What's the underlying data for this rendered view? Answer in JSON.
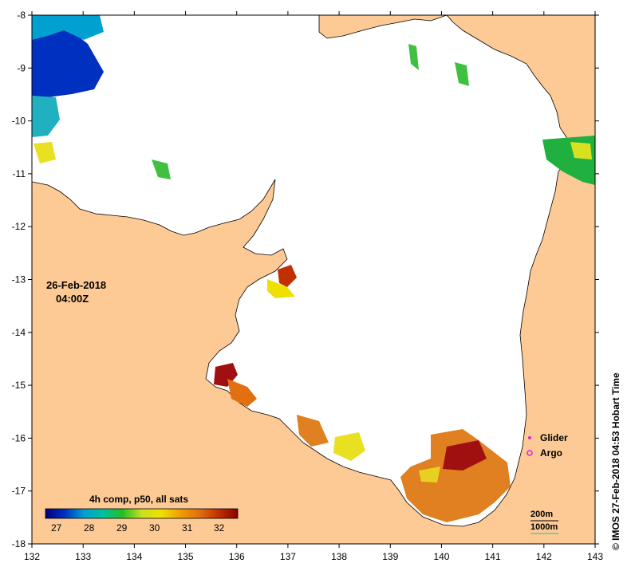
{
  "map": {
    "date": "26-Feb-2018",
    "time": "04:00Z",
    "credit": "© IMOS 27-Feb-2018 04:53 Hobart Time",
    "colors": {
      "land": "#fdca96",
      "sea": "#ffffff",
      "coast": "#000000"
    },
    "lon_ticks": [
      "132",
      "133",
      "134",
      "135",
      "136",
      "137",
      "138",
      "139",
      "140",
      "141",
      "142",
      "143"
    ],
    "lat_ticks": [
      "-8",
      "-9",
      "-10",
      "-11",
      "-12",
      "-13",
      "-14",
      "-15",
      "-16",
      "-17",
      "-18"
    ],
    "legend": {
      "title": "4h comp, p50, all sats",
      "ticks": [
        "27",
        "28",
        "29",
        "30",
        "31",
        "32"
      ],
      "scale": [
        "#000080",
        "#0030c0",
        "#00a0d0",
        "#00c0a0",
        "#20c020",
        "#c8e020",
        "#f0e000",
        "#f0a000",
        "#e07010",
        "#c03000",
        "#8b0000"
      ]
    },
    "key": {
      "glider": "Glider",
      "argo": "Argo",
      "glider_color": "#e020e0",
      "argo_color": "#e020e0",
      "depth_200": "200m",
      "depth_1000": "1000m",
      "depth_200_color": "#000000",
      "depth_1000_color": "#20c0a0"
    }
  }
}
